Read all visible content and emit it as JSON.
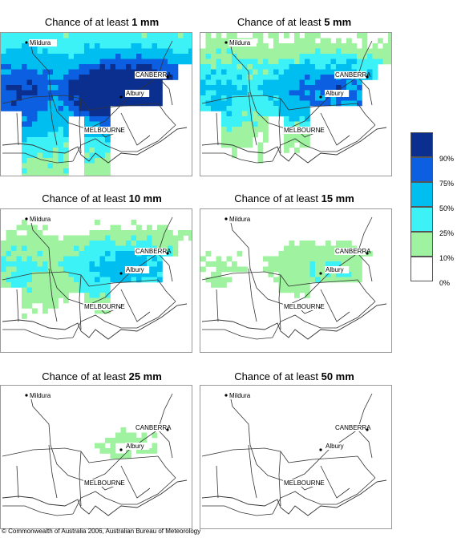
{
  "panels": [
    {
      "prefix": "Chance of at least ",
      "amount": "1 mm",
      "level": 5
    },
    {
      "prefix": "Chance of at least ",
      "amount": "5 mm",
      "level": 4
    },
    {
      "prefix": "Chance of at least ",
      "amount": "10 mm",
      "level": 3
    },
    {
      "prefix": "Chance of at least ",
      "amount": "15 mm",
      "level": 2
    },
    {
      "prefix": "Chance of at least ",
      "amount": "25 mm",
      "level": 1
    },
    {
      "prefix": "Chance of at least ",
      "amount": "50 mm",
      "level": 0
    }
  ],
  "cities": {
    "mildura": "Mildura",
    "canberra": "CANBERRA",
    "albury": "Albury",
    "melbourne": "MELBOURNE"
  },
  "legend": {
    "ticks": [
      "90%",
      "75%",
      "50%",
      "25%",
      "10%",
      "0%"
    ],
    "colors": [
      "#0b2f8e",
      "#0b5fe0",
      "#00bff0",
      "#3cf2f6",
      "#9ff29f",
      "#ffffff"
    ]
  },
  "copyright": "© Commonwealth of Australia 2006, Australian Bureau of Meteorology"
}
